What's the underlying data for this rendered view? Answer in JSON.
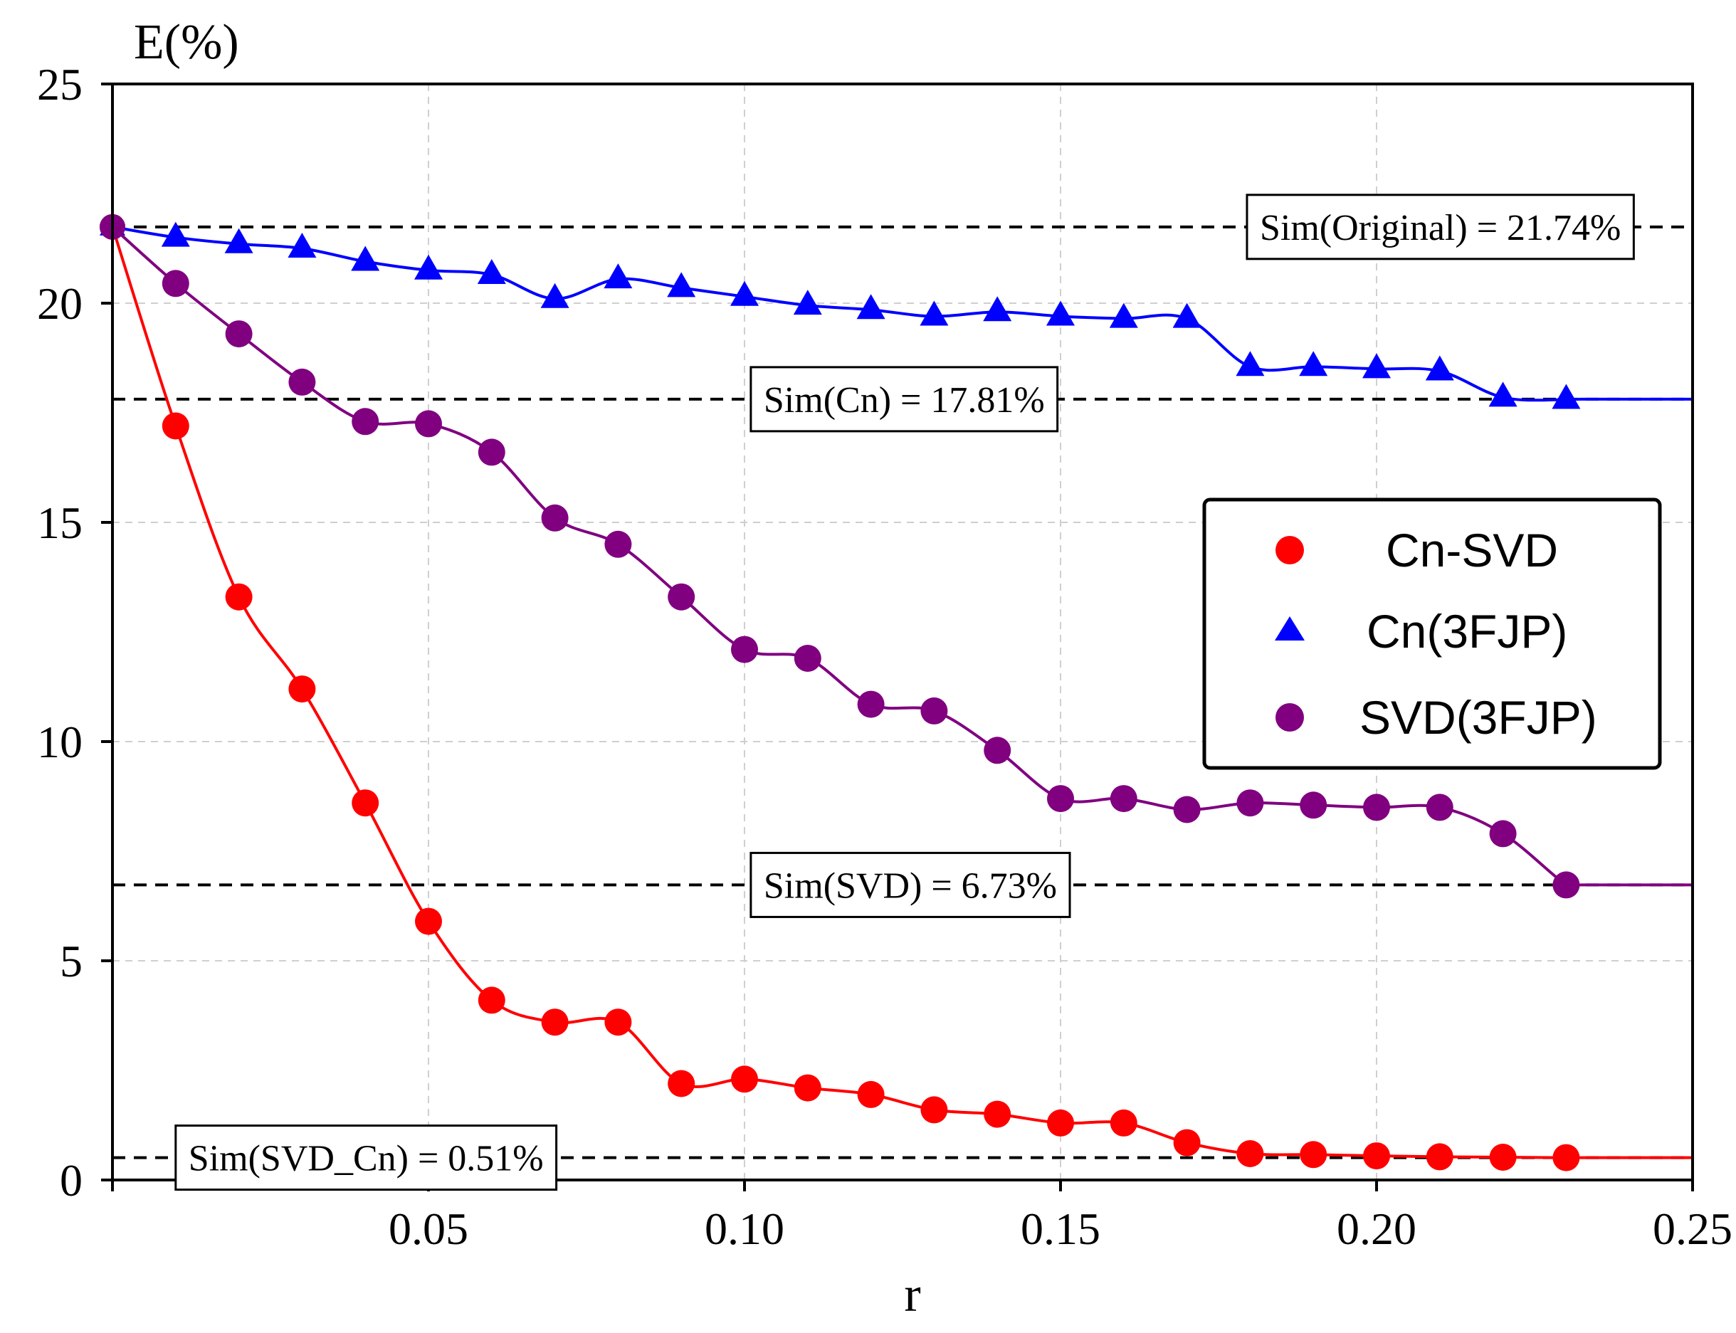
{
  "chart_data": {
    "type": "line",
    "title": "",
    "xlabel": "r",
    "ylabel": "E(%)",
    "xlim": [
      0,
      0.25
    ],
    "ylim": [
      0,
      25
    ],
    "x_ticks": [
      {
        "value": 0.05,
        "label": "0.05"
      },
      {
        "value": 0.1,
        "label": "0.10"
      },
      {
        "value": 0.15,
        "label": "0.15"
      },
      {
        "value": 0.2,
        "label": "0.20"
      },
      {
        "value": 0.25,
        "label": "0.25"
      }
    ],
    "y_ticks": [
      {
        "value": 0,
        "label": "0"
      },
      {
        "value": 5,
        "label": "5"
      },
      {
        "value": 10,
        "label": "10"
      },
      {
        "value": 15,
        "label": "15"
      },
      {
        "value": 20,
        "label": "20"
      },
      {
        "value": 25,
        "label": "25"
      }
    ],
    "grid": true,
    "legend_position": "center-right",
    "series": [
      {
        "name": "Cn-SVD",
        "color": "#ff0000",
        "marker": "circle",
        "x": [
          0.01,
          0.02,
          0.03,
          0.04,
          0.05,
          0.06,
          0.07,
          0.08,
          0.09,
          0.1,
          0.11,
          0.12,
          0.13,
          0.14,
          0.15,
          0.16,
          0.17,
          0.18,
          0.19,
          0.2,
          0.21,
          0.22,
          0.23
        ],
        "values": [
          17.2,
          13.3,
          11.2,
          8.6,
          5.9,
          4.1,
          3.6,
          3.6,
          2.2,
          2.3,
          2.1,
          1.95,
          1.6,
          1.5,
          1.3,
          1.3,
          0.85,
          0.6,
          0.58,
          0.55,
          0.53,
          0.52,
          0.51
        ],
        "line_start": 21.74,
        "line_end": 0.51
      },
      {
        "name": "Cn(3FJP)",
        "color": "#0000ff",
        "marker": "triangle",
        "x": [
          0.01,
          0.02,
          0.03,
          0.04,
          0.05,
          0.06,
          0.07,
          0.08,
          0.09,
          0.1,
          0.11,
          0.12,
          0.13,
          0.14,
          0.15,
          0.16,
          0.17,
          0.18,
          0.19,
          0.2,
          0.21,
          0.22,
          0.23
        ],
        "values": [
          21.5,
          21.35,
          21.25,
          20.95,
          20.75,
          20.65,
          20.1,
          20.55,
          20.35,
          20.15,
          19.95,
          19.85,
          19.7,
          19.8,
          19.7,
          19.65,
          19.65,
          18.55,
          18.55,
          18.5,
          18.45,
          17.85,
          17.8
        ],
        "line_start": 21.74,
        "line_end": 17.81
      },
      {
        "name": "SVD(3FJP)",
        "color": "#800080",
        "marker": "circle",
        "x": [
          0.01,
          0.02,
          0.03,
          0.04,
          0.05,
          0.06,
          0.07,
          0.08,
          0.09,
          0.1,
          0.11,
          0.12,
          0.13,
          0.14,
          0.15,
          0.16,
          0.17,
          0.18,
          0.19,
          0.2,
          0.21,
          0.22,
          0.23
        ],
        "values": [
          20.45,
          19.3,
          18.2,
          17.3,
          17.25,
          16.6,
          15.1,
          14.5,
          13.3,
          12.1,
          11.9,
          10.85,
          10.7,
          9.8,
          8.7,
          8.7,
          8.45,
          8.6,
          8.55,
          8.5,
          8.5,
          7.9,
          6.73
        ],
        "line_start": 21.74,
        "line_end": 6.73
      }
    ],
    "reference_lines": [
      {
        "value": 21.74,
        "label": "Sim(Original) = 21.74%",
        "label_x": 0.1795
      },
      {
        "value": 17.81,
        "label": "Sim(Cn) = 17.81%",
        "label_x": 0.101
      },
      {
        "value": 6.73,
        "label": "Sim(SVD) = 6.73%",
        "label_x": 0.101
      },
      {
        "value": 0.51,
        "label": "Sim(SVD_Cn) = 0.51%",
        "label_x": 0.01
      }
    ]
  }
}
